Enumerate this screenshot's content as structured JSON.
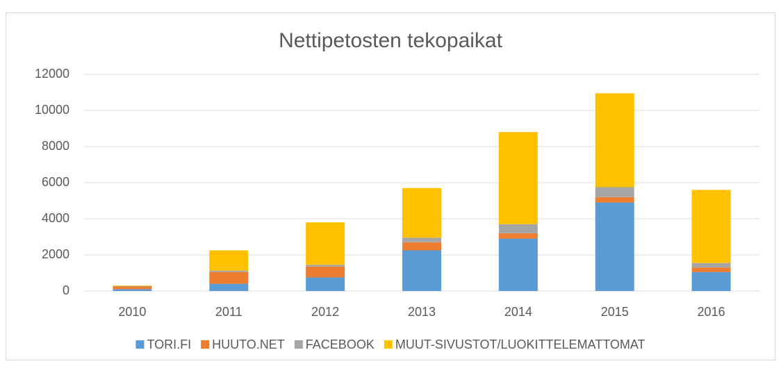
{
  "chart_data": {
    "type": "stacked_bar",
    "title": "Nettipetosten tekopaikat",
    "categories": [
      "2010",
      "2011",
      "2012",
      "2013",
      "2014",
      "2015",
      "2016"
    ],
    "series": [
      {
        "name": "TORI.FI",
        "color": "#5b9bd5",
        "values": [
          100,
          400,
          750,
          2250,
          2900,
          4900,
          1050
        ]
      },
      {
        "name": "HUUTO.NET",
        "color": "#ed7d31",
        "values": [
          150,
          650,
          600,
          450,
          300,
          300,
          250
        ]
      },
      {
        "name": "FACEBOOK",
        "color": "#a5a5a5",
        "values": [
          20,
          80,
          100,
          250,
          500,
          550,
          250
        ]
      },
      {
        "name": "MUUT-SIVUSTOT/LUOKITTELEMATTOMAT",
        "color": "#ffc000",
        "values": [
          30,
          1120,
          2350,
          2750,
          5100,
          5200,
          4050
        ]
      }
    ],
    "ylim": [
      0,
      12000
    ],
    "yticks": [
      0,
      2000,
      4000,
      6000,
      8000,
      10000,
      12000
    ],
    "grid": true,
    "legend": "bottom"
  }
}
